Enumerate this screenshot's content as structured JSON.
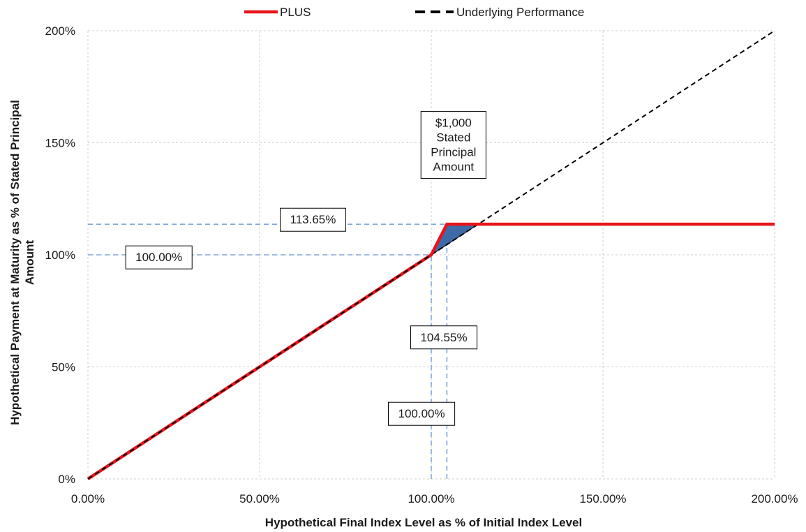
{
  "chart_data": {
    "type": "line",
    "xlabel": "Hypothetical Final Index Level as % of Initial Index Level",
    "ylabel_lines": [
      "Hypothetical Payment at Maturity as % of Stated Principal",
      "Amount"
    ],
    "xlim": [
      0,
      200
    ],
    "ylim": [
      0,
      200
    ],
    "grid": true,
    "legend_position": "top",
    "x_ticks": [
      0,
      50,
      100,
      150,
      200
    ],
    "x_tick_labels": [
      "0.00%",
      "50.00%",
      "100.00%",
      "150.00%",
      "200.00%"
    ],
    "y_ticks": [
      0,
      50,
      100,
      150,
      200
    ],
    "y_tick_labels": [
      "0%",
      "50%",
      "100%",
      "150%",
      "200%"
    ],
    "series": [
      {
        "name": "PLUS",
        "color": "#e8141b",
        "style": "solid",
        "x": [
          0,
          100,
          104.55,
          200
        ],
        "y": [
          0,
          100,
          113.65,
          113.65
        ]
      },
      {
        "name": "Underlying Performance",
        "color": "#000000",
        "style": "dashed",
        "x": [
          0,
          200
        ],
        "y": [
          0,
          200
        ]
      }
    ],
    "shaded_region": {
      "color": "#3e6aa8",
      "points": [
        [
          100,
          100
        ],
        [
          104.55,
          113.65
        ],
        [
          113.65,
          113.65
        ]
      ]
    },
    "reference_lines": {
      "color": "#7ea7d8",
      "horizontal": [
        {
          "y": 113.65,
          "x_from": 0,
          "x_to": 104.55
        },
        {
          "y": 100,
          "x_from": 0,
          "x_to": 100
        }
      ],
      "vertical": [
        {
          "x": 100,
          "y_from": 0,
          "y_to": 100
        },
        {
          "x": 104.55,
          "y_from": 0,
          "y_to": 113.65
        }
      ]
    },
    "annotations": [
      {
        "id": "principal",
        "lines": [
          "$1,000",
          "Stated",
          "Principal",
          "Amount"
        ],
        "x": 97,
        "y": 164,
        "xy_anchor": "top-left"
      },
      {
        "id": "level-11365",
        "lines": [
          "113.65%"
        ],
        "x": 56,
        "y": 120.8,
        "xy_anchor": "top-left"
      },
      {
        "id": "level-100-y",
        "lines": [
          "100.00%"
        ],
        "x": 11,
        "y": 104,
        "xy_anchor": "top-left"
      },
      {
        "id": "level-10455",
        "lines": [
          "104.55%"
        ],
        "x": 94,
        "y": 68.3,
        "xy_anchor": "top-left"
      },
      {
        "id": "level-100-x",
        "lines": [
          "100.00%"
        ],
        "x": 87.5,
        "y": 34.2,
        "xy_anchor": "top-left"
      }
    ]
  }
}
